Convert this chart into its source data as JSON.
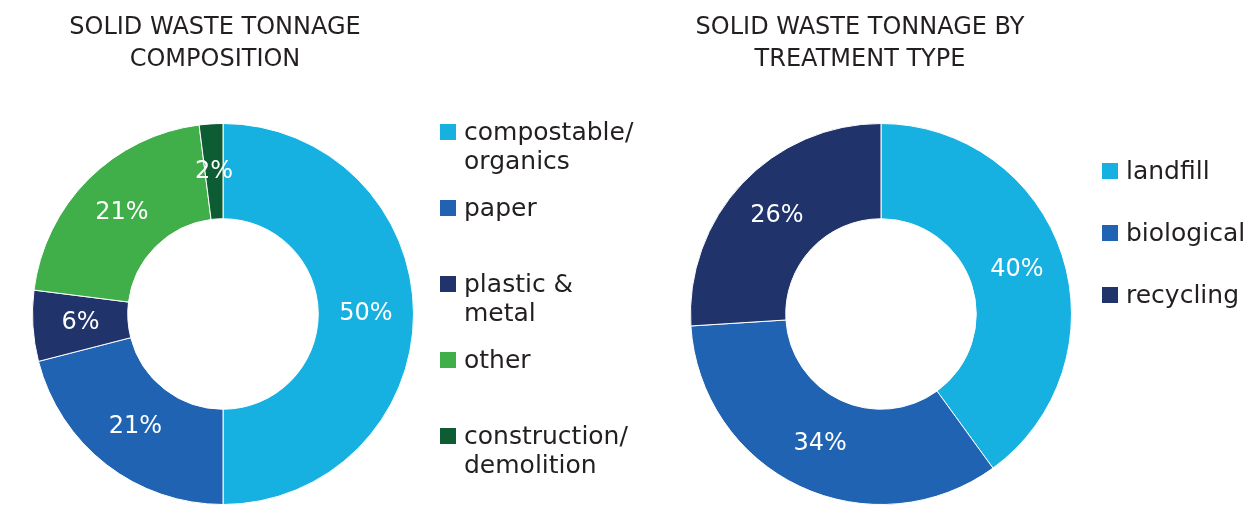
{
  "chart_data": [
    {
      "type": "donut",
      "title": "SOLID WASTE TONNAGE COMPOSITION",
      "categories": [
        "compostable/organics",
        "paper",
        "plastic & metal",
        "other",
        "construction/demolition"
      ],
      "values": [
        50,
        21,
        6,
        21,
        2
      ],
      "colors": [
        "#16b1e0",
        "#1f63b2",
        "#20336b",
        "#40ae49",
        "#0d5c33"
      ],
      "value_labels": [
        "50%",
        "21%",
        "6%",
        "21%",
        "2%"
      ],
      "legend": "right"
    },
    {
      "type": "donut",
      "title": "SOLID WASTE TONNAGE BY TREATMENT TYPE",
      "categories": [
        "landfill",
        "biological",
        "recycling"
      ],
      "values": [
        40,
        34,
        26
      ],
      "colors": [
        "#16b1e0",
        "#1f63b2",
        "#20336b"
      ],
      "value_labels": [
        "40%",
        "34%",
        "26%"
      ],
      "legend": "right"
    }
  ]
}
